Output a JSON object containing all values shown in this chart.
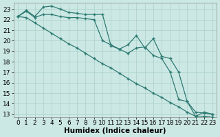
{
  "xlabel": "Humidex (Indice chaleur)",
  "background_color": "#cce8e4",
  "grid_color": "#aad0ca",
  "line_color": "#2d7a72",
  "x_values": [
    0,
    1,
    2,
    3,
    4,
    5,
    6,
    7,
    8,
    9,
    10,
    11,
    12,
    13,
    14,
    15,
    16,
    17,
    18,
    19,
    20,
    21,
    22,
    23
  ],
  "line1": [
    22.3,
    22.9,
    22.3,
    23.2,
    23.3,
    23.0,
    22.7,
    22.6,
    22.5,
    22.5,
    22.5,
    19.5,
    19.2,
    19.6,
    20.5,
    19.3,
    20.2,
    18.5,
    18.3,
    17.0,
    14.2,
    12.8,
    13.2,
    13.0
  ],
  "line2": [
    22.3,
    22.8,
    22.2,
    22.5,
    22.5,
    22.3,
    22.2,
    22.2,
    22.1,
    22.0,
    20.0,
    19.6,
    19.2,
    18.8,
    19.3,
    19.4,
    18.6,
    18.3,
    17.0,
    14.4,
    14.2,
    13.2,
    13.1,
    13.0
  ],
  "line3": [
    22.3,
    22.2,
    21.7,
    21.2,
    20.7,
    20.2,
    19.7,
    19.3,
    18.8,
    18.3,
    17.8,
    17.4,
    16.9,
    16.4,
    15.9,
    15.5,
    15.0,
    14.6,
    14.1,
    13.7,
    13.2,
    12.8,
    12.8,
    12.7
  ],
  "ylim_min": 12.7,
  "ylim_max": 23.6,
  "xlim_min": -0.5,
  "xlim_max": 23.5,
  "yticks": [
    13,
    14,
    15,
    16,
    17,
    18,
    19,
    20,
    21,
    22,
    23
  ],
  "xticks": [
    0,
    1,
    2,
    3,
    4,
    5,
    6,
    7,
    8,
    9,
    10,
    11,
    12,
    13,
    14,
    15,
    16,
    17,
    18,
    19,
    20,
    21,
    22,
    23
  ],
  "fontsize": 6.5,
  "xlabel_fontsize": 7.5,
  "lw": 0.9,
  "ms": 3.0
}
